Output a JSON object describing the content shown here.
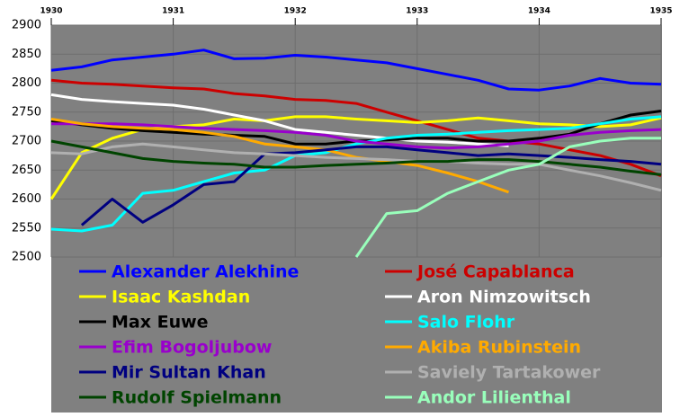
{
  "chart_data": {
    "type": "line",
    "x": [
      1930,
      1930.25,
      1930.5,
      1930.75,
      1931,
      1931.25,
      1931.5,
      1931.75,
      1932,
      1932.25,
      1932.5,
      1932.75,
      1933,
      1933.25,
      1933.5,
      1933.75,
      1934,
      1934.25,
      1934.5,
      1934.75,
      1935
    ],
    "xlim": [
      1930,
      1935
    ],
    "xticks": [
      1930,
      1931,
      1932,
      1933,
      1934,
      1935
    ],
    "ylim": [
      2500,
      2900
    ],
    "yticks": [
      2500,
      2550,
      2600,
      2650,
      2700,
      2750,
      2800,
      2850,
      2900
    ],
    "grid": true,
    "legend": "bottom",
    "series": [
      {
        "name": "Alexander Alekhine",
        "color": "#0000ff",
        "values": [
          2822,
          2828,
          2840,
          2845,
          2850,
          2857,
          2842,
          2843,
          2848,
          2845,
          2840,
          2835,
          2825,
          2815,
          2805,
          2790,
          2788,
          2795,
          2808,
          2800,
          2798
        ]
      },
      {
        "name": "José Capablanca",
        "color": "#cc0000",
        "values": [
          2805,
          2800,
          2798,
          2795,
          2792,
          2790,
          2782,
          2778,
          2772,
          2770,
          2765,
          2750,
          2735,
          2720,
          2705,
          2700,
          2695,
          2685,
          2675,
          2660,
          2640
        ]
      },
      {
        "name": "Isaac Kashdan",
        "color": "#ffff00",
        "values": [
          2600,
          2680,
          2705,
          2720,
          2725,
          2728,
          2738,
          2735,
          2742,
          2742,
          2738,
          2735,
          2732,
          2735,
          2740,
          2735,
          2730,
          2728,
          2725,
          2728,
          2740
        ]
      },
      {
        "name": "Aron Nimzowitsch",
        "color": "#ffffff",
        "values": [
          2780,
          2772,
          2768,
          2765,
          2762,
          2755,
          2745,
          2735,
          2720,
          2715,
          2710,
          2705,
          2700,
          2698,
          2695,
          2692,
          null,
          null,
          null,
          null,
          null
        ]
      },
      {
        "name": "Max Euwe",
        "color": "#000000",
        "values": [
          2735,
          2728,
          2722,
          2718,
          2715,
          2712,
          2710,
          2708,
          2695,
          2695,
          2700,
          2702,
          2705,
          2705,
          2700,
          2700,
          2705,
          2712,
          2730,
          2745,
          2752
        ]
      },
      {
        "name": "Salo Flohr",
        "color": "#00ffff",
        "values": [
          2548,
          2545,
          2555,
          2610,
          2615,
          2630,
          2645,
          2650,
          2675,
          2680,
          2695,
          2705,
          2710,
          2712,
          2715,
          2718,
          2720,
          2722,
          2730,
          2738,
          2742
        ]
      },
      {
        "name": "Efim Bogoljubow",
        "color": "#9900cc",
        "values": [
          2730,
          2730,
          2730,
          2728,
          2725,
          2722,
          2720,
          2718,
          2715,
          2710,
          2700,
          2695,
          2690,
          2688,
          2690,
          2695,
          2700,
          2710,
          2715,
          2718,
          2720
        ]
      },
      {
        "name": "Akiba Rubinstein",
        "color": "#ffaa00",
        "values": [
          2738,
          2730,
          2725,
          2722,
          2720,
          2715,
          2708,
          2695,
          2690,
          2685,
          2672,
          2665,
          2658,
          2645,
          2630,
          2612,
          null,
          null,
          null,
          null,
          null
        ]
      },
      {
        "name": "Mir Sultan Khan",
        "color": "#000080",
        "values": [
          null,
          2555,
          2600,
          2560,
          2590,
          2625,
          2630,
          2678,
          2680,
          2685,
          2690,
          2690,
          2685,
          2680,
          2675,
          2678,
          2675,
          2672,
          2668,
          2665,
          2660
        ]
      },
      {
        "name": "Saviely Tartakower",
        "color": "#b0b0b0",
        "values": [
          2680,
          2678,
          2690,
          2695,
          2690,
          2685,
          2680,
          2678,
          2675,
          2672,
          2670,
          2668,
          2665,
          2665,
          2662,
          2660,
          2660,
          2650,
          2640,
          2628,
          2615
        ]
      },
      {
        "name": "Rudolf Spielmann",
        "color": "#004400",
        "values": [
          2700,
          2690,
          2680,
          2670,
          2665,
          2662,
          2660,
          2655,
          2655,
          2658,
          2660,
          2662,
          2665,
          2665,
          2668,
          2668,
          2665,
          2660,
          2655,
          2648,
          2642
        ]
      },
      {
        "name": "Andor Lilienthal",
        "color": "#99ffbb",
        "values": [
          null,
          null,
          null,
          null,
          null,
          null,
          null,
          null,
          null,
          null,
          2500,
          2575,
          2580,
          2610,
          2630,
          2650,
          2660,
          2690,
          2700,
          2705,
          2705
        ]
      }
    ]
  }
}
